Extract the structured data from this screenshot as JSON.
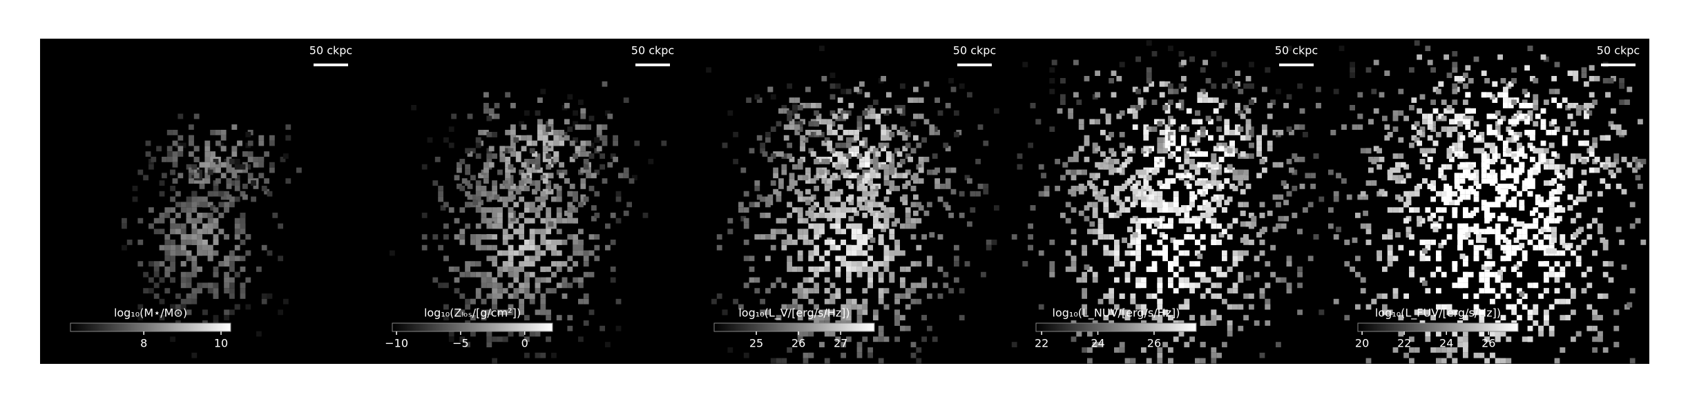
{
  "chart_data": [
    {
      "type": "image",
      "scale_label": "50 ckpc",
      "colorbar_label": "log₁₀(M⋆/M⊙)",
      "xlim": [
        6.1,
        10.25
      ],
      "xticks": [
        8,
        10
      ]
    },
    {
      "type": "image",
      "scale_label": "50 ckpc",
      "colorbar_label": "log₁₀(Zₗₒₛ/[g/cm²])",
      "xlim": [
        -10.33,
        2.17
      ],
      "xticks": [
        {
          "value": -10,
          "label": "−10"
        },
        {
          "value": -5,
          "label": "−5"
        },
        0
      ]
    },
    {
      "type": "image",
      "scale_label": "50 ckpc",
      "colorbar_label": "log₁₀(L_V/[erg/s/Hz])",
      "xlim": [
        24.0,
        27.8
      ],
      "xticks": [
        25,
        26,
        27
      ]
    },
    {
      "type": "image",
      "scale_label": "50 ckpc",
      "colorbar_label": "log₁₀(L_NUV/[erg/s/Hz])",
      "xlim": [
        21.8,
        27.5
      ],
      "xticks": [
        22,
        24,
        26
      ]
    },
    {
      "type": "image",
      "scale_label": "50 ckpc",
      "colorbar_label": "log₁₀(L_FUV/[erg/s/Hz])",
      "xlim": [
        19.8,
        27.4
      ],
      "xticks": [
        20,
        22,
        24,
        26
      ]
    }
  ]
}
